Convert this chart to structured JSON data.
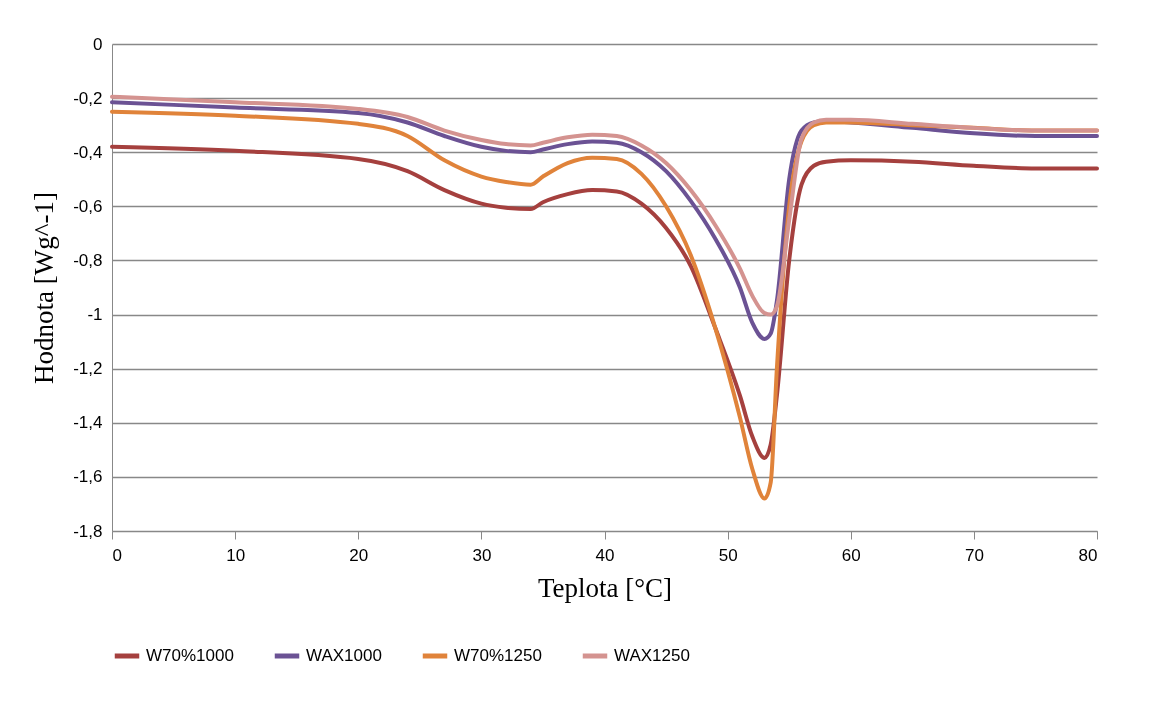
{
  "chart_data": {
    "type": "line",
    "xlabel": "Teplota [°C]",
    "ylabel": "Hodnota [Wg^-1]",
    "xlim": [
      0,
      80
    ],
    "xticks": [
      0,
      10,
      20,
      30,
      40,
      50,
      60,
      70,
      80
    ],
    "ylim": [
      -1.8,
      0
    ],
    "yticks": [
      {
        "value": -1.8,
        "label": "-1,8"
      },
      {
        "value": -1.6,
        "label": "-1,6"
      },
      {
        "value": -1.4,
        "label": "-1,4"
      },
      {
        "value": -1.2,
        "label": "-1,2"
      },
      {
        "value": -1,
        "label": "-1"
      },
      {
        "value": -0.8,
        "label": "-0,8"
      },
      {
        "value": -0.6,
        "label": "-0,6"
      },
      {
        "value": -0.4,
        "label": "-0,4"
      },
      {
        "value": -0.2,
        "label": "-0,2"
      },
      0
    ],
    "grid": "y",
    "legend": "bottom",
    "line_style": "solid",
    "marker": "none",
    "x": [
      0,
      10,
      20,
      24,
      27,
      30,
      32,
      34,
      35,
      37,
      39,
      41,
      43,
      45,
      47,
      49,
      51,
      52,
      53,
      53.5,
      54,
      55,
      56,
      57,
      58,
      60,
      65,
      70,
      75,
      80
    ],
    "series": [
      {
        "name": "W70%1000",
        "color": "#a5403e",
        "values": [
          -0.38,
          -0.395,
          -0.425,
          -0.47,
          -0.54,
          -0.59,
          -0.605,
          -0.61,
          -0.585,
          -0.555,
          -0.54,
          -0.545,
          -0.59,
          -0.68,
          -0.82,
          -1.05,
          -1.3,
          -1.45,
          -1.53,
          -1.48,
          -1.3,
          -0.8,
          -0.52,
          -0.45,
          -0.435,
          -0.43,
          -0.435,
          -0.45,
          -0.46,
          -0.46
        ]
      },
      {
        "name": "WAX1000",
        "color": "#6b5294",
        "values": [
          -0.215,
          -0.235,
          -0.255,
          -0.29,
          -0.34,
          -0.38,
          -0.395,
          -0.4,
          -0.39,
          -0.37,
          -0.36,
          -0.365,
          -0.4,
          -0.47,
          -0.58,
          -0.72,
          -0.9,
          -1.03,
          -1.09,
          -1.07,
          -0.95,
          -0.5,
          -0.32,
          -0.29,
          -0.285,
          -0.29,
          -0.31,
          -0.33,
          -0.34,
          -0.34
        ]
      },
      {
        "name": "W70%1250",
        "color": "#e0833a",
        "values": [
          -0.25,
          -0.265,
          -0.295,
          -0.34,
          -0.43,
          -0.49,
          -0.51,
          -0.52,
          -0.49,
          -0.44,
          -0.42,
          -0.425,
          -0.48,
          -0.6,
          -0.78,
          -1.05,
          -1.38,
          -1.57,
          -1.68,
          -1.62,
          -1.2,
          -0.6,
          -0.36,
          -0.3,
          -0.29,
          -0.29,
          -0.3,
          -0.31,
          -0.32,
          -0.32
        ]
      },
      {
        "name": "WAX1250",
        "color": "#d49390",
        "values": [
          -0.195,
          -0.215,
          -0.24,
          -0.27,
          -0.32,
          -0.355,
          -0.37,
          -0.375,
          -0.365,
          -0.345,
          -0.335,
          -0.34,
          -0.375,
          -0.44,
          -0.54,
          -0.67,
          -0.83,
          -0.93,
          -0.995,
          -1.0,
          -0.97,
          -0.65,
          -0.35,
          -0.29,
          -0.28,
          -0.28,
          -0.295,
          -0.31,
          -0.32,
          -0.32
        ]
      }
    ]
  }
}
